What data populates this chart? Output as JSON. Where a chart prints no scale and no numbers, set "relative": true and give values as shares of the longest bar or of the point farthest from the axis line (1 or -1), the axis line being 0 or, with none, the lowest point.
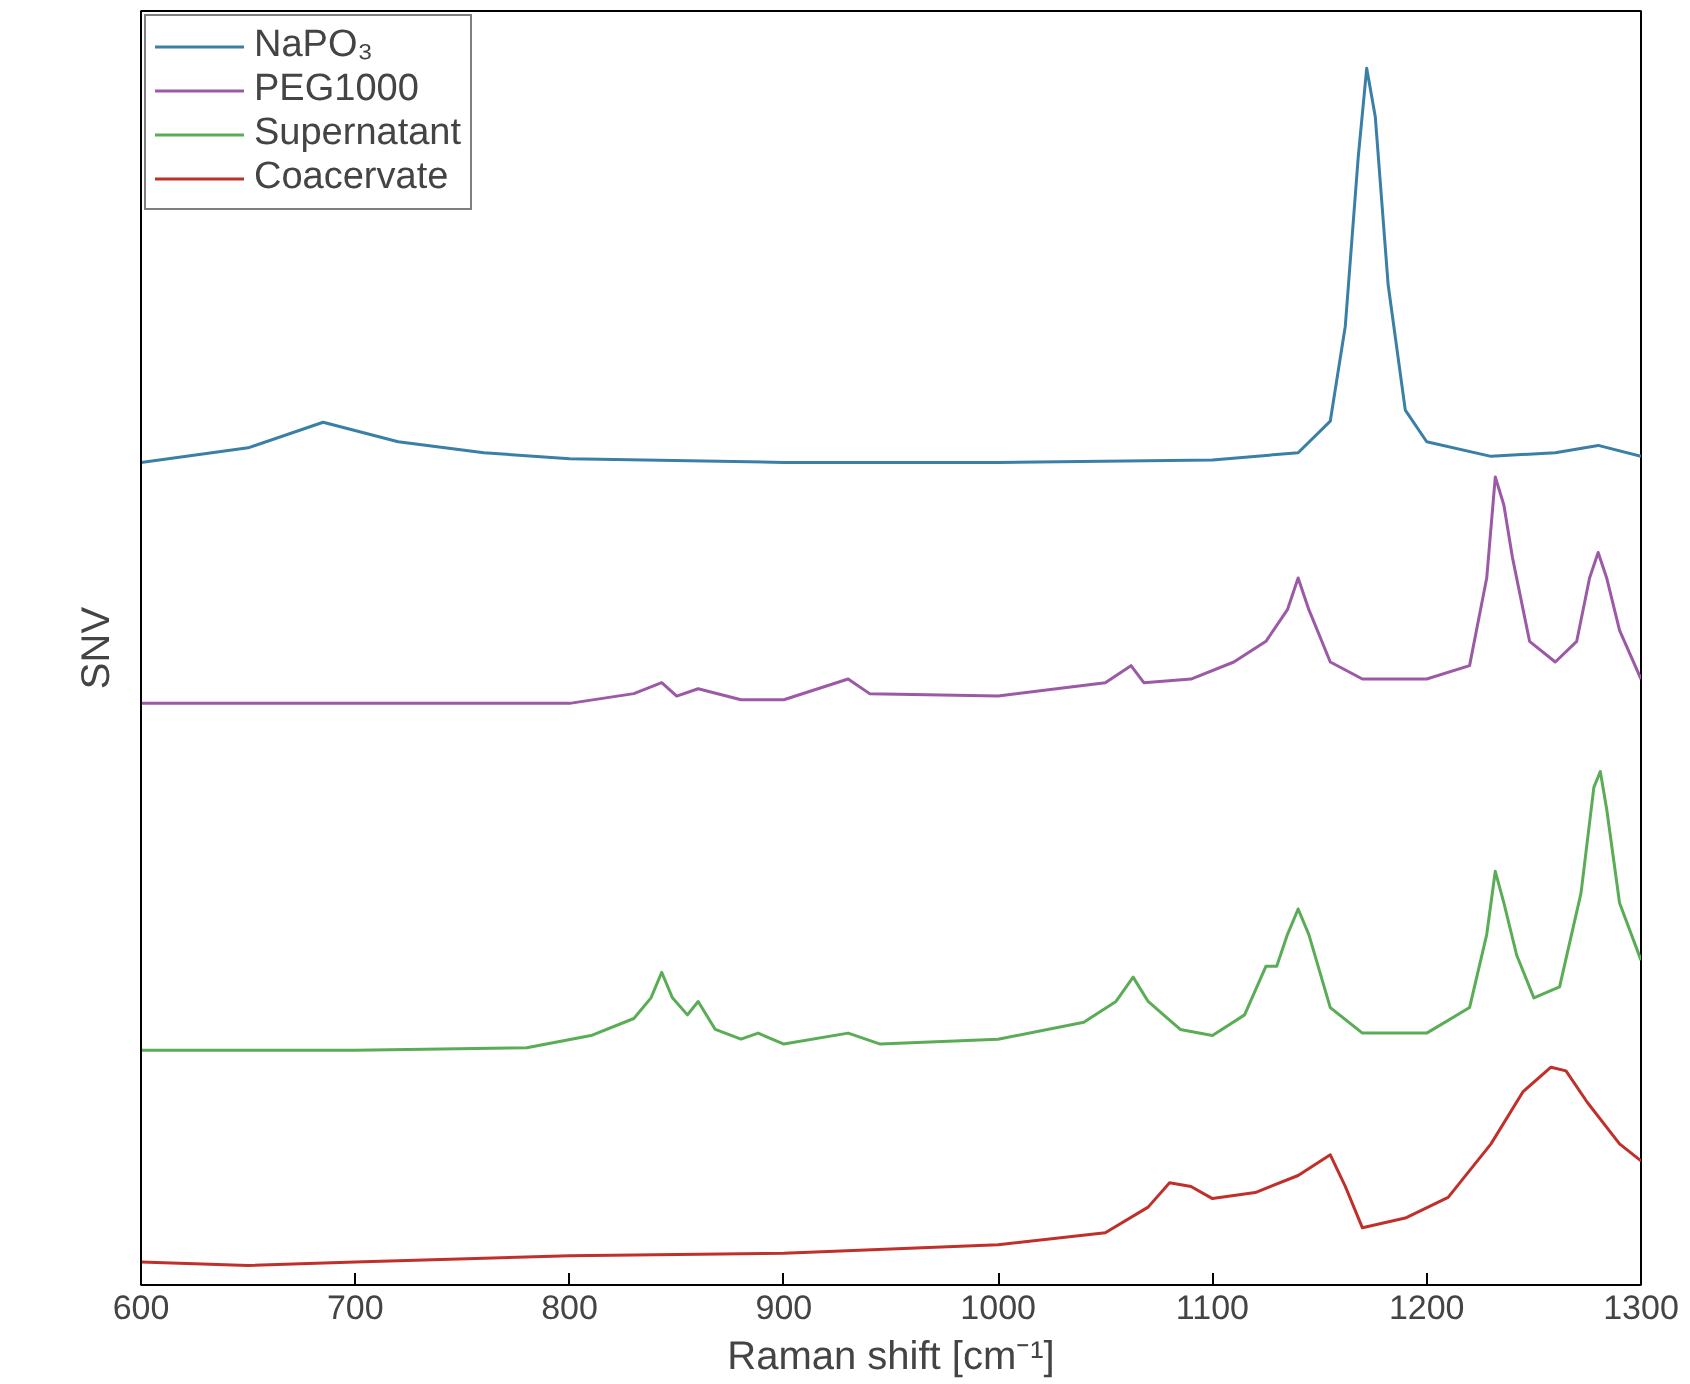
{
  "chart_data": {
    "type": "line",
    "relative": true,
    "xlabel": "Raman shift [cm⁻¹]",
    "ylabel": "SNV",
    "xlim": [
      600,
      1300
    ],
    "xticks": [
      600,
      700,
      800,
      900,
      1000,
      1100,
      1200,
      1300
    ],
    "tick_labels": "x",
    "legend": "top left",
    "series": [
      {
        "name": "NaPO₃",
        "color": "#3a7fa6",
        "x": [
          600,
          650,
          685,
          720,
          760,
          800,
          900,
          1000,
          1100,
          1140,
          1155,
          1162,
          1168,
          1172,
          1176,
          1182,
          1190,
          1200,
          1230,
          1260,
          1280,
          1300
        ],
        "values": [
          0.676,
          0.688,
          0.709,
          0.693,
          0.684,
          0.679,
          0.676,
          0.676,
          0.678,
          0.684,
          0.71,
          0.788,
          0.926,
          1.0,
          0.96,
          0.822,
          0.719,
          0.693,
          0.681,
          0.684,
          0.69,
          0.681
        ]
      },
      {
        "name": "PEG1000",
        "color": "#9b59a6",
        "x": [
          600,
          700,
          800,
          830,
          843,
          850,
          860,
          880,
          900,
          930,
          940,
          1000,
          1050,
          1062,
          1068,
          1090,
          1110,
          1125,
          1135,
          1140,
          1145,
          1155,
          1170,
          1200,
          1220,
          1228,
          1232,
          1236,
          1240,
          1248,
          1260,
          1270,
          1276,
          1280,
          1284,
          1290,
          1300
        ],
        "values": [
          0.478,
          0.478,
          0.478,
          0.486,
          0.495,
          0.484,
          0.49,
          0.481,
          0.481,
          0.498,
          0.486,
          0.484,
          0.495,
          0.509,
          0.495,
          0.498,
          0.512,
          0.529,
          0.555,
          0.581,
          0.555,
          0.512,
          0.498,
          0.498,
          0.509,
          0.581,
          0.664,
          0.641,
          0.598,
          0.529,
          0.512,
          0.529,
          0.581,
          0.602,
          0.581,
          0.538,
          0.498
        ]
      },
      {
        "name": "Supernatant",
        "color": "#5aac56",
        "x": [
          600,
          700,
          780,
          810,
          830,
          838,
          843,
          848,
          855,
          860,
          868,
          880,
          888,
          900,
          930,
          945,
          1000,
          1040,
          1055,
          1063,
          1070,
          1085,
          1100,
          1115,
          1125,
          1130,
          1135,
          1140,
          1145,
          1155,
          1170,
          1200,
          1220,
          1228,
          1232,
          1236,
          1242,
          1250,
          1262,
          1272,
          1278,
          1281,
          1284,
          1290,
          1300
        ],
        "values": [
          0.193,
          0.193,
          0.195,
          0.205,
          0.219,
          0.236,
          0.257,
          0.236,
          0.222,
          0.233,
          0.21,
          0.202,
          0.207,
          0.198,
          0.207,
          0.198,
          0.202,
          0.216,
          0.233,
          0.253,
          0.233,
          0.21,
          0.205,
          0.222,
          0.262,
          0.262,
          0.288,
          0.309,
          0.288,
          0.228,
          0.207,
          0.207,
          0.228,
          0.288,
          0.34,
          0.314,
          0.271,
          0.236,
          0.245,
          0.322,
          0.409,
          0.422,
          0.391,
          0.314,
          0.267
        ]
      },
      {
        "name": "Coacervate",
        "color": "#c0302b",
        "x": [
          600,
          650,
          700,
          800,
          900,
          1000,
          1050,
          1070,
          1080,
          1090,
          1100,
          1120,
          1140,
          1155,
          1162,
          1170,
          1190,
          1210,
          1230,
          1245,
          1258,
          1265,
          1275,
          1290,
          1300
        ],
        "values": [
          0.019,
          0.016,
          0.019,
          0.024,
          0.026,
          0.033,
          0.043,
          0.064,
          0.084,
          0.081,
          0.071,
          0.076,
          0.09,
          0.107,
          0.081,
          0.047,
          0.055,
          0.072,
          0.116,
          0.159,
          0.179,
          0.176,
          0.15,
          0.116,
          0.102
        ]
      }
    ]
  }
}
